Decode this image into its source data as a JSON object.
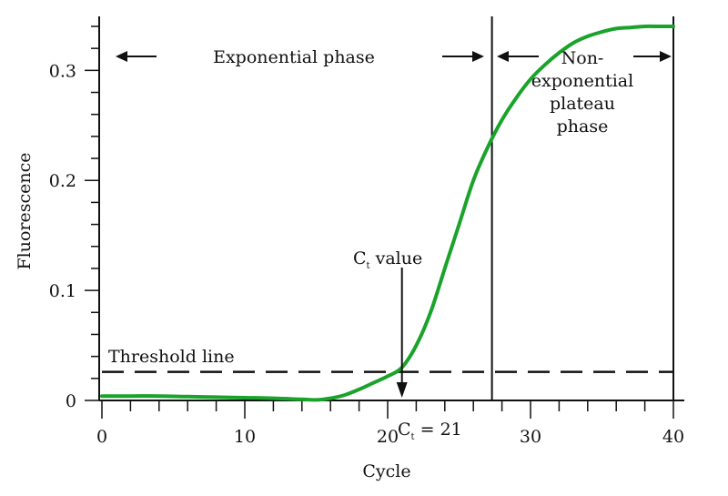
{
  "chart_data": {
    "type": "line",
    "xlabel": "Cycle",
    "ylabel": "Fluorescence",
    "xlim": [
      0,
      40
    ],
    "ylim": [
      0,
      0.34
    ],
    "x_ticks": [
      "0",
      "10",
      "20",
      "30",
      "40"
    ],
    "y_ticks": [
      "0",
      "0.1",
      "0.2",
      "0.3"
    ],
    "x_tick_values": [
      0,
      10,
      20,
      30,
      40
    ],
    "y_tick_values": [
      0,
      0.1,
      0.2,
      0.3
    ],
    "grid": false,
    "line_color": "#1aa32b",
    "series": [
      {
        "x": [
          0,
          2,
          4,
          6,
          8,
          10,
          12,
          14,
          15,
          16,
          17,
          18,
          19,
          20,
          21,
          22,
          23,
          24,
          25,
          26,
          27,
          28,
          29,
          30,
          31,
          32,
          33,
          34,
          35,
          36,
          37,
          38,
          39,
          40
        ],
        "y": [
          0.004,
          0.004,
          0.004,
          0.0035,
          0.003,
          0.0025,
          0.002,
          0.001,
          0.0005,
          0.002,
          0.005,
          0.01,
          0.016,
          0.022,
          0.03,
          0.05,
          0.08,
          0.12,
          0.16,
          0.2,
          0.23,
          0.255,
          0.275,
          0.292,
          0.305,
          0.316,
          0.325,
          0.331,
          0.335,
          0.338,
          0.339,
          0.34,
          0.34,
          0.34
        ]
      }
    ],
    "threshold": {
      "y": 0.026,
      "label": "Threshold line"
    },
    "vertical_lines": [
      27.3,
      40
    ],
    "ct": {
      "x": 21,
      "label_prefix": "C",
      "label_sub": "t",
      "label_suffix": " value",
      "eq_prefix": "C",
      "eq_sub": "t",
      "eq_suffix": " = 21"
    },
    "phases": {
      "exponential": "Exponential phase",
      "plateau_lines": [
        "Non-",
        "exponential",
        "plateau",
        "phase"
      ]
    }
  }
}
